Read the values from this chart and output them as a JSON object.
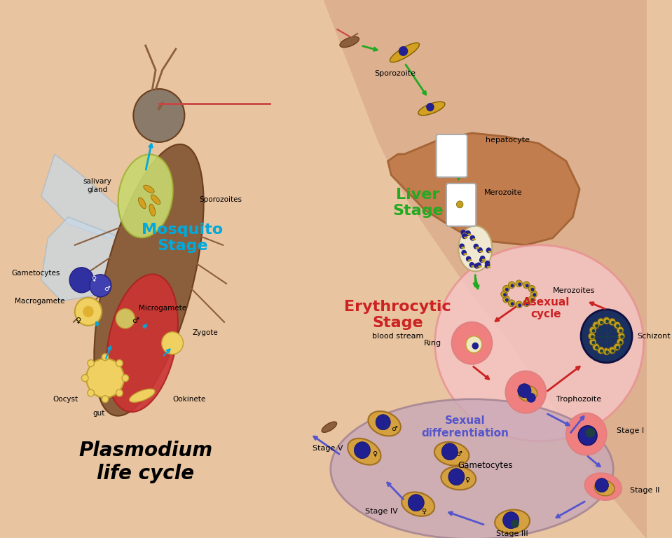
{
  "bg_color": "#e8c4a0",
  "title": "Plasmodium\nlife cycle",
  "mosquito_stage_label": "Mosquito\nStage",
  "mosquito_stage_color": "#00aadd",
  "liver_stage_label": "Liver\nStage",
  "liver_stage_color": "#22aa22",
  "erythrocytic_stage_label": "Erythrocytic\nStage",
  "erythrocytic_stage_color": "#cc2222",
  "blood_stream_label": "blood stream",
  "asexual_cycle_label": "Asexual\ncycle",
  "asexual_cycle_color": "#cc2222",
  "sexual_diff_label": "Sexual\ndifferentiation",
  "sexual_diff_color": "#5555cc",
  "labels": {
    "gametocytes": "Gametocytes",
    "sporozoites": "Sporozoites",
    "macrogamete": "Macrogamete",
    "microgamete": "Microgamete",
    "zygote": "Zygote",
    "ookinete": "Ookinete",
    "oocyst": "Oocyst",
    "gut": "gut",
    "salivary_gland": "salivary\ngland",
    "sporozoite_s": "Sporozoite",
    "hepatocyte": "hepatocyte",
    "merozoite_l": "Merozoite",
    "merozoites": "Merozoites",
    "ring": "Ring",
    "schizont": "Schizont",
    "trophozoite": "Trophozoite",
    "stage1": "Stage I",
    "stage2": "Stage II",
    "stage3": "Stage III",
    "stage4": "Stage IV",
    "stage5": "Stage V",
    "gametocytes2": "Gametocytes"
  },
  "arrow_green": "#22aa22",
  "arrow_red": "#cc2222",
  "arrow_blue": "#5555cc",
  "arrow_cyan": "#00aadd",
  "liver_color": "#c07848",
  "mosquito_body_color": "#8b5e3c",
  "gut_color": "#cc3333",
  "salivary_color": "#c8d870",
  "erythrocyte_color": "#f5a0a0",
  "rbc_pink": "#f08080",
  "sexual_zone_color": "#c8a8b0"
}
